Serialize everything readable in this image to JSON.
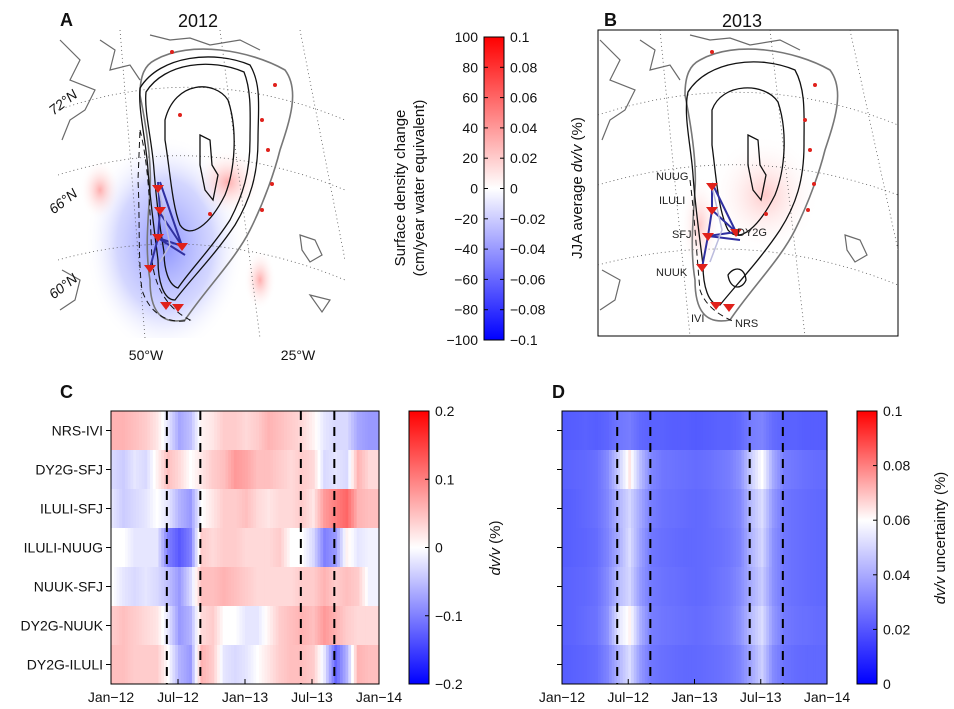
{
  "panels": {
    "A": {
      "letter": "A",
      "title": "2012"
    },
    "B": {
      "letter": "B",
      "title": "2013"
    },
    "C": {
      "letter": "C"
    },
    "D": {
      "letter": "D"
    }
  },
  "map_labels": {
    "lat": [
      "72°N",
      "66°N",
      "60°N"
    ],
    "lon": [
      "50°W",
      "25°W"
    ]
  },
  "stations": [
    "NUUG",
    "ILULI",
    "SFJ",
    "DY2G",
    "NUUK",
    "IVI",
    "NRS"
  ],
  "colorbar_top": {
    "left_label_line1": "Surface density change",
    "left_label_line2": "(cm/year water equivalent)",
    "right_label_prefix": "JJA average ",
    "right_label_var": "dv/v",
    "right_label_suffix": " (%)",
    "left_ticks": [
      "100",
      "80",
      "60",
      "40",
      "20",
      "0",
      "−20",
      "−40",
      "−60",
      "−80",
      "−100"
    ],
    "right_ticks": [
      "0.1",
      "0.08",
      "0.06",
      "0.04",
      "0.02",
      "0",
      "−0.02",
      "−0.04",
      "−0.06",
      "−0.08",
      "−0.1"
    ]
  },
  "colors": {
    "red": "#ff0000",
    "white": "#ffffff",
    "blue": "#0000ff",
    "marker": "#e0211b",
    "ice_contour": "#111111",
    "coast": "#666666"
  },
  "chart_data": [
    {
      "panel": "C",
      "type": "heatmap",
      "rows": [
        "NRS-IVI",
        "DY2G-SFJ",
        "ILULI-SFJ",
        "ILULI-NUUG",
        "NUUK-SFJ",
        "DY2G-NUUK",
        "DY2G-ILULI"
      ],
      "x_ticks": [
        "Jan−12",
        "Jul−12",
        "Jan−13",
        "Jul−13",
        "Jan−14"
      ],
      "x_range": [
        "2012-01",
        "2014-01"
      ],
      "dashed_markers": [
        "2012-06",
        "2012-09",
        "2013-06",
        "2013-09"
      ],
      "colorbar": {
        "label_var": "dv/v",
        "label_suffix": " (%)",
        "ticks": [
          "0.2",
          "0.1",
          "0",
          "−0.1",
          "−0.2"
        ],
        "range": [
          -0.2,
          0.2
        ]
      },
      "monthly_values": [
        [
          0.06,
          0.06,
          0.05,
          0.04,
          0.02,
          -0.02,
          -0.07,
          -0.05,
          0.01,
          0.02,
          0.04,
          0.04,
          0.03,
          0.04,
          0.06,
          0.05,
          0.04,
          0.03,
          0.01,
          -0.02,
          -0.03,
          -0.03,
          -0.07,
          -0.08
        ],
        [
          -0.03,
          -0.04,
          -0.02,
          -0.03,
          0.01,
          0.05,
          0.03,
          0.0,
          0.02,
          0.04,
          0.05,
          0.08,
          0.07,
          0.05,
          0.05,
          0.04,
          0.03,
          0.04,
          0.03,
          -0.03,
          -0.02,
          -0.03,
          0.06,
          0.03
        ],
        [
          -0.02,
          -0.04,
          -0.03,
          -0.02,
          0.0,
          -0.02,
          -0.06,
          -0.08,
          0.0,
          0.02,
          0.04,
          0.04,
          0.05,
          0.03,
          0.02,
          0.03,
          0.03,
          0.04,
          0.02,
          0.08,
          0.1,
          0.12,
          0.06,
          0.05
        ],
        [
          0.0,
          0.0,
          -0.02,
          -0.02,
          -0.02,
          -0.1,
          -0.13,
          -0.1,
          0.04,
          0.03,
          0.04,
          0.04,
          0.03,
          0.03,
          0.03,
          0.04,
          0.0,
          0.0,
          -0.03,
          -0.1,
          -0.08,
          0.01,
          -0.02,
          -0.01
        ],
        [
          0.0,
          -0.02,
          -0.03,
          -0.02,
          -0.03,
          -0.05,
          -0.08,
          -0.03,
          0.05,
          0.05,
          0.06,
          0.05,
          0.04,
          0.03,
          0.03,
          0.03,
          0.03,
          0.04,
          0.04,
          0.06,
          0.04,
          0.05,
          0.04,
          -0.01
        ],
        [
          0.04,
          0.05,
          0.04,
          0.03,
          0.02,
          -0.02,
          -0.08,
          -0.06,
          0.03,
          0.04,
          0.0,
          0.0,
          -0.02,
          -0.02,
          0.01,
          0.04,
          0.05,
          0.06,
          0.05,
          0.08,
          0.06,
          0.04,
          0.03,
          0.03
        ],
        [
          0.05,
          0.05,
          0.04,
          0.04,
          0.04,
          0.0,
          -0.06,
          -0.08,
          0.06,
          0.04,
          -0.02,
          -0.03,
          -0.02,
          0.0,
          0.02,
          0.04,
          0.05,
          0.05,
          0.04,
          -0.02,
          -0.12,
          -0.06,
          0.06,
          0.05
        ]
      ]
    },
    {
      "panel": "D",
      "type": "heatmap",
      "rows": [
        "NRS-IVI",
        "DY2G-SFJ",
        "ILULI-SFJ",
        "ILULI-NUUG",
        "NUUK-SFJ",
        "DY2G-NUUK",
        "DY2G-ILULI"
      ],
      "x_ticks": [
        "Jan−12",
        "Jul−12",
        "Jan−13",
        "Jul−13",
        "Jan−14"
      ],
      "x_range": [
        "2012-01",
        "2014-01"
      ],
      "dashed_markers": [
        "2012-06",
        "2012-09",
        "2013-06",
        "2013-09"
      ],
      "colorbar": {
        "label_var": "dv/v",
        "label_suffix": " uncertainty (%)",
        "ticks": [
          "0.1",
          "0.08",
          "0.06",
          "0.04",
          "0.02",
          "0"
        ],
        "range": [
          0,
          0.1
        ]
      },
      "monthly_values": [
        [
          0.012,
          0.013,
          0.014,
          0.013,
          0.015,
          0.02,
          0.022,
          0.016,
          0.014,
          0.014,
          0.013,
          0.013,
          0.012,
          0.013,
          0.014,
          0.014,
          0.016,
          0.022,
          0.024,
          0.017,
          0.014,
          0.014,
          0.013,
          0.013
        ],
        [
          0.014,
          0.015,
          0.016,
          0.018,
          0.026,
          0.045,
          0.064,
          0.04,
          0.024,
          0.02,
          0.019,
          0.018,
          0.017,
          0.018,
          0.02,
          0.022,
          0.028,
          0.045,
          0.06,
          0.035,
          0.022,
          0.02,
          0.018,
          0.017
        ],
        [
          0.013,
          0.014,
          0.016,
          0.018,
          0.025,
          0.038,
          0.048,
          0.034,
          0.022,
          0.019,
          0.018,
          0.017,
          0.016,
          0.017,
          0.019,
          0.021,
          0.025,
          0.04,
          0.05,
          0.03,
          0.02,
          0.018,
          0.017,
          0.016
        ],
        [
          0.013,
          0.014,
          0.015,
          0.017,
          0.024,
          0.036,
          0.05,
          0.032,
          0.02,
          0.018,
          0.017,
          0.016,
          0.016,
          0.017,
          0.018,
          0.02,
          0.024,
          0.038,
          0.048,
          0.028,
          0.02,
          0.018,
          0.017,
          0.016
        ],
        [
          0.014,
          0.015,
          0.016,
          0.018,
          0.026,
          0.04,
          0.048,
          0.03,
          0.021,
          0.019,
          0.018,
          0.017,
          0.016,
          0.017,
          0.019,
          0.021,
          0.026,
          0.036,
          0.045,
          0.028,
          0.02,
          0.018,
          0.017,
          0.016
        ],
        [
          0.014,
          0.015,
          0.017,
          0.019,
          0.028,
          0.052,
          0.062,
          0.036,
          0.022,
          0.02,
          0.019,
          0.018,
          0.017,
          0.018,
          0.02,
          0.022,
          0.028,
          0.04,
          0.05,
          0.03,
          0.021,
          0.019,
          0.018,
          0.017
        ],
        [
          0.013,
          0.014,
          0.015,
          0.017,
          0.024,
          0.038,
          0.05,
          0.03,
          0.02,
          0.018,
          0.017,
          0.016,
          0.016,
          0.017,
          0.018,
          0.02,
          0.024,
          0.034,
          0.046,
          0.026,
          0.019,
          0.017,
          0.016,
          0.016
        ]
      ]
    }
  ]
}
